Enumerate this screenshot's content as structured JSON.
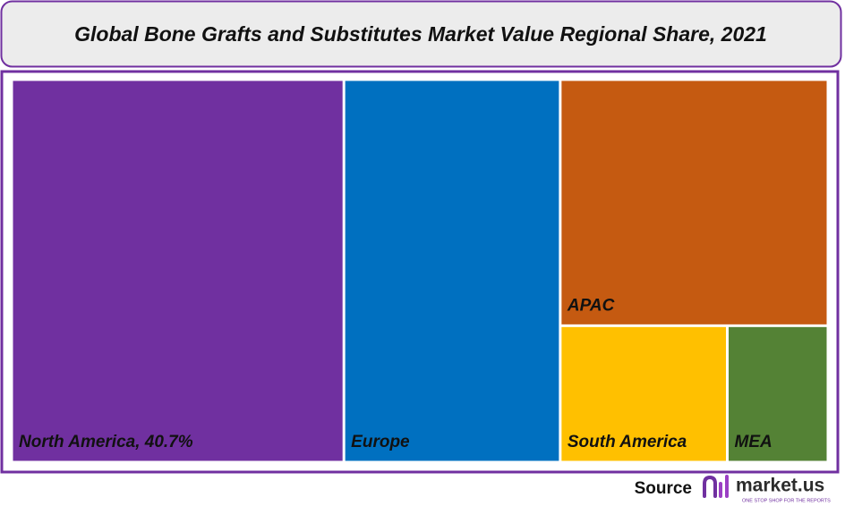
{
  "chart_data": {
    "type": "treemap",
    "title": "Global Bone Grafts and Substitutes Market Value Regional Share, 2021",
    "categories": [
      "North America, 40.7%",
      "Europe",
      "APAC",
      "South America",
      "MEA"
    ],
    "values": [
      40.7,
      26.5,
      21.1,
      7.3,
      4.4
    ],
    "colors": [
      "#7030a0",
      "#0070c0",
      "#c55a11",
      "#ffc000",
      "#548235"
    ]
  },
  "footer": {
    "source": "Source",
    "logo": "market.us",
    "tagline": "ONE STOP SHOP FOR THE REPORTS"
  }
}
